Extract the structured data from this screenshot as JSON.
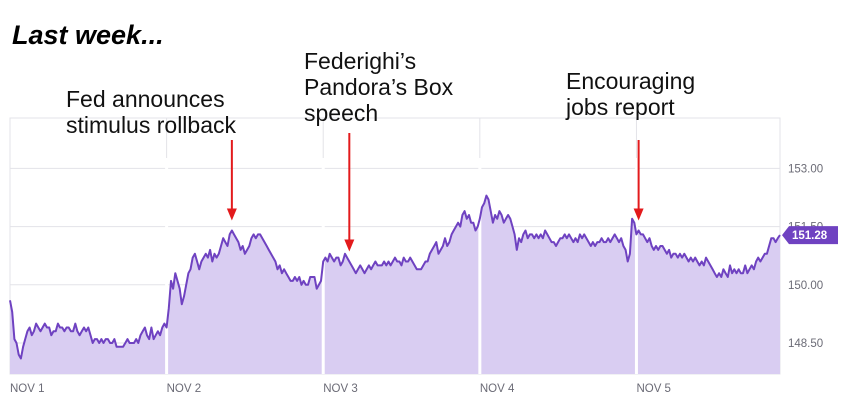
{
  "heading": "Last week...",
  "annotations": [
    {
      "text": "Fed announces\nstimulus rollback",
      "x_index": 102
    },
    {
      "text": "Federighi’s\nPandora’s Box\nspeech",
      "x_index": 156
    },
    {
      "text": "Encouraging\njobs report",
      "x_index": 289
    }
  ],
  "chart_data": {
    "type": "area",
    "title": "",
    "xlabel": "",
    "ylabel": "",
    "x_ticks": [
      {
        "label": "NOV 1",
        "index": 0
      },
      {
        "label": "NOV 2",
        "index": 72
      },
      {
        "label": "NOV 3",
        "index": 144
      },
      {
        "label": "NOV 4",
        "index": 216
      },
      {
        "label": "NOV 5",
        "index": 288
      }
    ],
    "y_ticks": [
      148.5,
      150.0,
      151.5,
      153.0
    ],
    "ylim": [
      147.7,
      154.3
    ],
    "grid": true,
    "last_value": "151.28",
    "colors": {
      "line": "#6f42c1",
      "fill": "#d9cdf2",
      "grid": "#e3e3e8",
      "arrow": "#e31a1c",
      "badge": "#6f42c1"
    },
    "series": [
      {
        "values": [
          149.6,
          149.3,
          148.6,
          148.5,
          148.2,
          148.1,
          148.4,
          148.6,
          148.8,
          148.9,
          148.7,
          148.8,
          149.0,
          148.9,
          148.8,
          148.9,
          149.0,
          148.9,
          148.9,
          148.7,
          148.8,
          148.8,
          149.0,
          148.9,
          148.9,
          148.8,
          148.9,
          148.9,
          148.8,
          148.8,
          149.0,
          148.8,
          148.7,
          148.8,
          148.9,
          148.8,
          148.9,
          148.7,
          148.5,
          148.6,
          148.6,
          148.5,
          148.6,
          148.5,
          148.6,
          148.6,
          148.5,
          148.5,
          148.6,
          148.4,
          148.4,
          148.4,
          148.4,
          148.5,
          148.6,
          148.5,
          148.5,
          148.5,
          148.6,
          148.5,
          148.7,
          148.8,
          148.9,
          148.7,
          148.6,
          148.9,
          148.6,
          148.7,
          148.8,
          148.7,
          148.9,
          149.0,
          148.9,
          149.4,
          150.1,
          149.9,
          150.3,
          150.1,
          149.9,
          149.5,
          149.7,
          150.0,
          150.3,
          150.4,
          150.7,
          150.8,
          150.6,
          150.4,
          150.6,
          150.7,
          150.8,
          150.7,
          150.9,
          150.6,
          150.8,
          150.7,
          150.8,
          151.0,
          151.2,
          151.1,
          151.0,
          151.3,
          151.4,
          151.3,
          151.2,
          151.1,
          150.9,
          151.0,
          150.8,
          150.9,
          151.0,
          151.2,
          151.3,
          151.2,
          151.3,
          151.3,
          151.2,
          151.1,
          151.0,
          150.9,
          150.8,
          150.7,
          150.6,
          150.4,
          150.5,
          150.3,
          150.4,
          150.3,
          150.2,
          150.1,
          150.1,
          150.2,
          150.1,
          150.2,
          150.0,
          150.1,
          150.0,
          150.0,
          150.2,
          150.2,
          150.2,
          149.9,
          150.0,
          150.1,
          150.6,
          150.7,
          150.6,
          150.8,
          150.7,
          150.6,
          150.7,
          150.7,
          150.5,
          150.6,
          150.8,
          150.7,
          150.6,
          150.5,
          150.4,
          150.3,
          150.4,
          150.5,
          150.4,
          150.3,
          150.4,
          150.5,
          150.4,
          150.5,
          150.6,
          150.5,
          150.5,
          150.5,
          150.6,
          150.5,
          150.6,
          150.5,
          150.6,
          150.7,
          150.6,
          150.6,
          150.5,
          150.7,
          150.6,
          150.6,
          150.7,
          150.6,
          150.5,
          150.4,
          150.4,
          150.4,
          150.5,
          150.6,
          150.6,
          150.8,
          150.9,
          151.0,
          151.1,
          150.8,
          150.9,
          151.0,
          151.2,
          151.0,
          151.1,
          151.3,
          151.4,
          151.5,
          151.6,
          151.5,
          151.8,
          151.9,
          151.7,
          151.8,
          151.6,
          151.6,
          151.4,
          151.5,
          151.7,
          152.0,
          152.1,
          152.3,
          152.2,
          151.9,
          151.6,
          151.8,
          151.7,
          151.9,
          151.8,
          151.6,
          151.7,
          151.8,
          151.7,
          151.5,
          151.3,
          150.9,
          151.2,
          151.1,
          151.3,
          151.4,
          151.2,
          151.3,
          151.3,
          151.2,
          151.3,
          151.2,
          151.3,
          151.2,
          151.4,
          151.3,
          151.2,
          151.1,
          151.1,
          151.0,
          151.1,
          151.2,
          151.2,
          151.3,
          151.2,
          151.3,
          151.2,
          151.1,
          151.2,
          151.1,
          151.3,
          151.2,
          151.3,
          151.2,
          151.1,
          151.0,
          151.1,
          151.0,
          151.1,
          151.1,
          151.2,
          151.1,
          151.1,
          151.2,
          151.1,
          151.2,
          151.3,
          151.2,
          151.1,
          151.2,
          151.0,
          150.9,
          150.6,
          150.8,
          151.7,
          151.6,
          151.3,
          151.4,
          151.3,
          151.3,
          151.2,
          151.1,
          151.2,
          151.0,
          150.9,
          151.0,
          150.9,
          151.0,
          151.0,
          150.9,
          150.8,
          150.9,
          150.7,
          150.8,
          150.8,
          150.7,
          150.8,
          150.7,
          150.8,
          150.7,
          150.6,
          150.7,
          150.6,
          150.7,
          150.6,
          150.5,
          150.6,
          150.5,
          150.7,
          150.6,
          150.5,
          150.4,
          150.3,
          150.2,
          150.3,
          150.2,
          150.4,
          150.3,
          150.2,
          150.5,
          150.3,
          150.4,
          150.3,
          150.4,
          150.3,
          150.3,
          150.5,
          150.3,
          150.4,
          150.5,
          150.4,
          150.6,
          150.7,
          150.6,
          150.7,
          150.8,
          150.8,
          151.0,
          151.2,
          151.2,
          151.1,
          151.2,
          151.28
        ]
      }
    ]
  }
}
